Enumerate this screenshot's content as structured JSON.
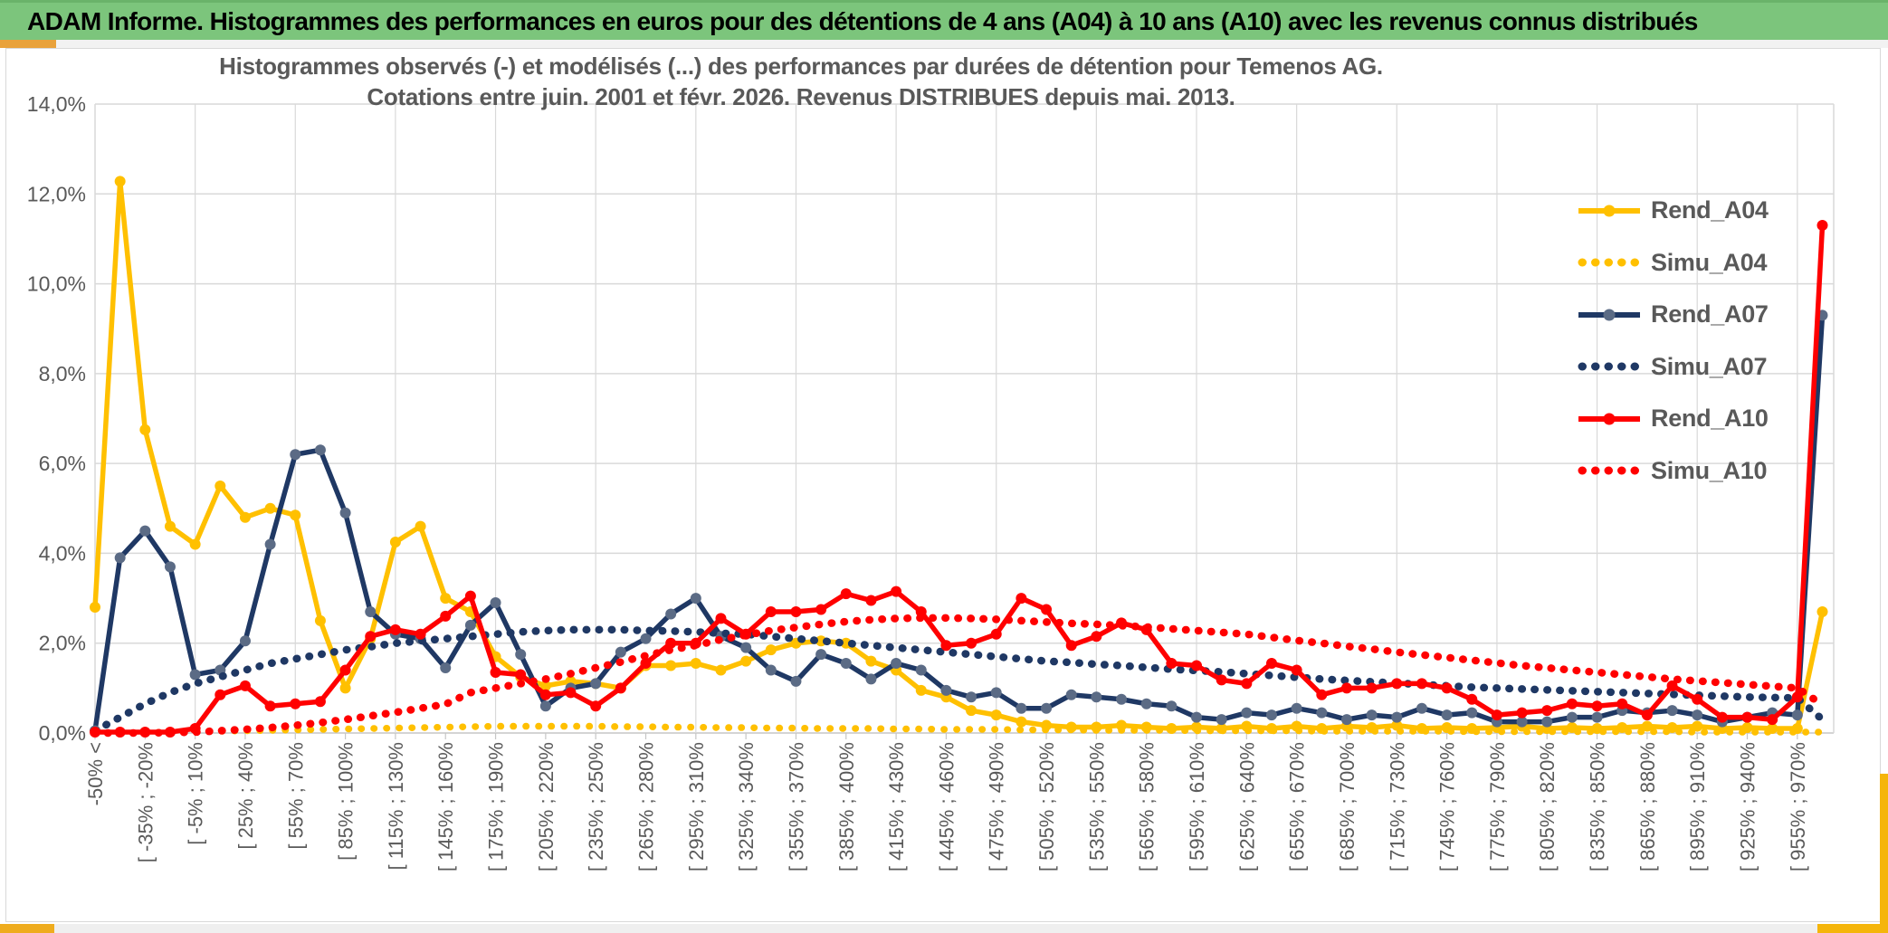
{
  "page": {
    "header_title": "ADAM Informe. Histogrammes des performances en euros pour des détentions de 4 ans (A04) à 10 ans (A10) avec les revenus connus distribués"
  },
  "chart": {
    "title_line1": "Histogrammes observés (-) et modélisés (...) des performances par durées de détention pour Temenos AG.",
    "title_line2": "Cotations entre juin. 2001 et févr. 2026. Revenus DISTRIBUES depuis mai. 2013."
  },
  "colors": {
    "header_green": "#7cc57c",
    "gold_accent": "#e9a23b",
    "grid": "#d9d9d9",
    "axis": "#c6c6c6",
    "text_gray": "#595959",
    "series_gold": "#FFC000",
    "series_navy": "#1F3864",
    "series_red": "#FF0000",
    "navy_marker": "#5B6B85"
  },
  "chart_data": {
    "type": "line",
    "n_points": 70,
    "ylim": [
      0,
      14
    ],
    "grid": true,
    "legend_position": "right",
    "y_tick_labels": [
      "0,0%",
      "2,0%",
      "4,0%",
      "6,0%",
      "8,0%",
      "10,0%",
      "12,0%",
      "14,0%"
    ],
    "x_tick_labels": [
      "-50% <",
      "[ -35% ; -20%",
      "[ -5% ; 10%",
      "[ 25% ; 40%",
      "[ 55% ; 70%",
      "[ 85% ; 100%",
      "[ 115% ; 130%",
      "[ 145% ; 160%",
      "[ 175% ; 190%",
      "[ 205% ; 220%",
      "[ 235% ; 250%",
      "[ 265% ; 280%",
      "[ 295% ; 310%",
      "[ 325% ; 340%",
      "[ 355% ; 370%",
      "[ 385% ; 400%",
      "[ 415% ; 430%",
      "[ 445% ; 460%",
      "[ 475% ; 490%",
      "[ 505% ; 520%",
      "[ 535% ; 550%",
      "[ 565% ; 580%",
      "[ 595% ; 610%",
      "[ 625% ; 640%",
      "[ 655% ; 670%",
      "[ 685% ; 700%",
      "[ 715% ; 730%",
      "[ 745% ; 760%",
      "[ 775% ; 790%",
      "[ 805% ; 820%",
      "[ 835% ; 850%",
      "[ 865% ; 880%",
      "[ 895% ; 910%",
      "[ 925% ; 940%",
      "[ 955% ; 970%"
    ],
    "x_tick_every_n_points": 2,
    "series": [
      {
        "name": "Rend_A04",
        "color": "#FFC000",
        "marker_color": "#FFC000",
        "style": "solid",
        "values": [
          2.8,
          12.28,
          6.75,
          4.6,
          4.2,
          5.5,
          4.8,
          5.0,
          4.85,
          2.5,
          1.0,
          2.1,
          4.25,
          4.6,
          3.0,
          2.7,
          1.7,
          1.25,
          1.05,
          1.15,
          1.1,
          1.0,
          1.5,
          1.5,
          1.55,
          1.4,
          1.6,
          1.85,
          2.0,
          2.05,
          2.0,
          1.6,
          1.4,
          0.95,
          0.8,
          0.5,
          0.4,
          0.25,
          0.17,
          0.13,
          0.13,
          0.17,
          0.13,
          0.1,
          0.13,
          0.1,
          0.15,
          0.1,
          0.15,
          0.1,
          0.15,
          0.12,
          0.17,
          0.1,
          0.12,
          0.1,
          0.12,
          0.15,
          0.1,
          0.12,
          0.1,
          0.12,
          0.15,
          0.12,
          0.15,
          0.1,
          0.12,
          0.1,
          0.1,
          2.7
        ]
      },
      {
        "name": "Simu_A04",
        "color": "#FFC000",
        "style": "dotted",
        "values": [
          0,
          0,
          0.01,
          0.02,
          0.03,
          0.04,
          0.05,
          0.06,
          0.07,
          0.08,
          0.09,
          0.1,
          0.11,
          0.12,
          0.13,
          0.14,
          0.15,
          0.15,
          0.15,
          0.15,
          0.15,
          0.14,
          0.14,
          0.13,
          0.13,
          0.12,
          0.12,
          0.11,
          0.11,
          0.1,
          0.1,
          0.1,
          0.09,
          0.09,
          0.08,
          0.08,
          0.08,
          0.07,
          0.07,
          0.07,
          0.06,
          0.06,
          0.06,
          0.06,
          0.05,
          0.05,
          0.05,
          0.05,
          0.05,
          0.04,
          0.04,
          0.04,
          0.04,
          0.04,
          0.04,
          0.03,
          0.03,
          0.03,
          0.03,
          0.03,
          0.03,
          0.03,
          0.03,
          0.03,
          0.02,
          0.02,
          0.02,
          0.02,
          0.02,
          0.02
        ]
      },
      {
        "name": "Rend_A07",
        "color": "#1F3864",
        "marker_color": "#5B6B85",
        "style": "solid",
        "values": [
          0.05,
          3.9,
          4.5,
          3.7,
          1.3,
          1.4,
          2.05,
          4.2,
          6.2,
          6.3,
          4.9,
          2.7,
          2.2,
          2.1,
          1.45,
          2.4,
          2.9,
          1.75,
          0.6,
          1.0,
          1.1,
          1.8,
          2.1,
          2.65,
          3.0,
          2.15,
          1.9,
          1.4,
          1.15,
          1.75,
          1.55,
          1.2,
          1.55,
          1.4,
          0.95,
          0.8,
          0.9,
          0.55,
          0.55,
          0.85,
          0.8,
          0.75,
          0.65,
          0.6,
          0.35,
          0.3,
          0.45,
          0.4,
          0.55,
          0.45,
          0.3,
          0.4,
          0.35,
          0.55,
          0.4,
          0.45,
          0.25,
          0.25,
          0.25,
          0.35,
          0.35,
          0.5,
          0.45,
          0.5,
          0.4,
          0.25,
          0.35,
          0.45,
          0.4,
          9.3
        ]
      },
      {
        "name": "Simu_A07",
        "color": "#1F3864",
        "style": "dotted",
        "values": [
          0.05,
          0.35,
          0.65,
          0.9,
          1.1,
          1.25,
          1.4,
          1.55,
          1.65,
          1.75,
          1.85,
          1.92,
          2.0,
          2.05,
          2.1,
          2.15,
          2.2,
          2.25,
          2.28,
          2.3,
          2.3,
          2.3,
          2.28,
          2.27,
          2.25,
          2.22,
          2.2,
          2.15,
          2.1,
          2.05,
          2.0,
          1.95,
          1.9,
          1.85,
          1.8,
          1.75,
          1.7,
          1.65,
          1.6,
          1.57,
          1.53,
          1.5,
          1.46,
          1.42,
          1.39,
          1.36,
          1.32,
          1.28,
          1.24,
          1.2,
          1.17,
          1.14,
          1.11,
          1.08,
          1.05,
          1.02,
          1.0,
          0.98,
          0.96,
          0.94,
          0.92,
          0.9,
          0.88,
          0.86,
          0.84,
          0.82,
          0.8,
          0.79,
          0.78,
          0.3
        ]
      },
      {
        "name": "Rend_A10",
        "color": "#FF0000",
        "marker_color": "#FF0000",
        "style": "solid",
        "values": [
          0.02,
          0.02,
          0.02,
          0.02,
          0.1,
          0.85,
          1.05,
          0.6,
          0.65,
          0.7,
          1.4,
          2.15,
          2.3,
          2.2,
          2.6,
          3.05,
          1.35,
          1.3,
          0.85,
          0.9,
          0.6,
          1.0,
          1.55,
          2.0,
          2.0,
          2.55,
          2.2,
          2.7,
          2.7,
          2.75,
          3.1,
          2.95,
          3.15,
          2.7,
          1.95,
          2.0,
          2.2,
          3.0,
          2.75,
          1.95,
          2.15,
          2.45,
          2.3,
          1.55,
          1.5,
          1.18,
          1.1,
          1.55,
          1.4,
          0.85,
          1.0,
          1.0,
          1.1,
          1.1,
          1.0,
          0.75,
          0.4,
          0.45,
          0.5,
          0.65,
          0.6,
          0.65,
          0.4,
          1.05,
          0.75,
          0.35,
          0.35,
          0.3,
          0.8,
          11.3
        ]
      },
      {
        "name": "Simu_A10",
        "color": "#FF0000",
        "style": "dotted",
        "values": [
          0,
          0,
          0,
          0.01,
          0.02,
          0.05,
          0.08,
          0.12,
          0.17,
          0.23,
          0.3,
          0.38,
          0.46,
          0.55,
          0.64,
          0.9,
          1.0,
          1.1,
          1.2,
          1.32,
          1.45,
          1.58,
          1.72,
          1.85,
          1.95,
          2.08,
          2.18,
          2.28,
          2.35,
          2.42,
          2.48,
          2.52,
          2.55,
          2.56,
          2.56,
          2.55,
          2.53,
          2.5,
          2.47,
          2.44,
          2.42,
          2.39,
          2.36,
          2.32,
          2.28,
          2.24,
          2.2,
          2.13,
          2.06,
          2.0,
          1.93,
          1.87,
          1.8,
          1.74,
          1.68,
          1.62,
          1.56,
          1.5,
          1.45,
          1.4,
          1.35,
          1.3,
          1.25,
          1.2,
          1.16,
          1.12,
          1.08,
          1.04,
          1.0,
          0.63
        ]
      }
    ]
  }
}
